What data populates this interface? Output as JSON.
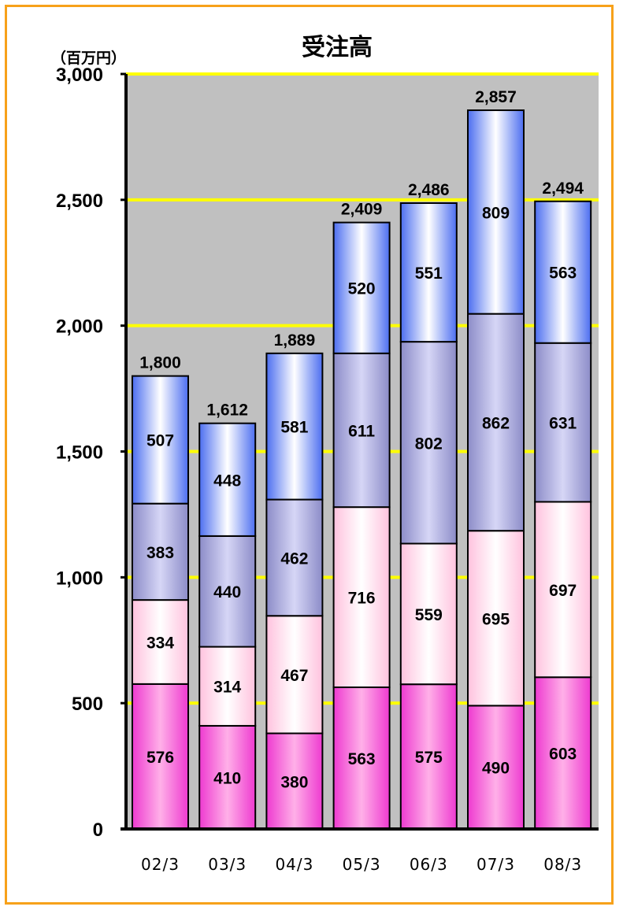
{
  "chart_data": {
    "type": "bar",
    "stacked": true,
    "title": "受注高",
    "unit_label": "（百万円）",
    "categories": [
      "02/3",
      "03/3",
      "04/3",
      "05/3",
      "06/3",
      "07/3",
      "08/3"
    ],
    "series": [
      {
        "values": [
          576,
          410,
          380,
          563,
          575,
          490,
          603
        ],
        "color_light": "#ffb0e8",
        "color_dark": "#ee3ad0"
      },
      {
        "values": [
          334,
          314,
          467,
          716,
          559,
          695,
          697
        ],
        "color_light": "#ffffff",
        "color_dark": "#ffc2de"
      },
      {
        "values": [
          383,
          440,
          462,
          611,
          802,
          862,
          631
        ],
        "color_light": "#d6d6f6",
        "color_dark": "#8c8cc8"
      },
      {
        "values": [
          507,
          448,
          581,
          520,
          551,
          809,
          563
        ],
        "color_light": "#ffffff",
        "color_dark": "#4c6ef0"
      }
    ],
    "totals": [
      "1,800",
      "1,612",
      "1,889",
      "2,409",
      "2,486",
      "2,857",
      "2,494"
    ],
    "ylim": [
      0,
      3000
    ],
    "yticks": [
      0,
      500,
      1000,
      1500,
      2000,
      2500,
      3000
    ],
    "ytick_labels": [
      "0",
      "500",
      "1,000",
      "1,500",
      "2,000",
      "2,500",
      "3,000"
    ],
    "grid": true,
    "colors": {
      "frame_border": "#f7a11a",
      "plot_background": "#c0c0c0",
      "gridline": "#ffff00",
      "axis": "#000000"
    }
  }
}
